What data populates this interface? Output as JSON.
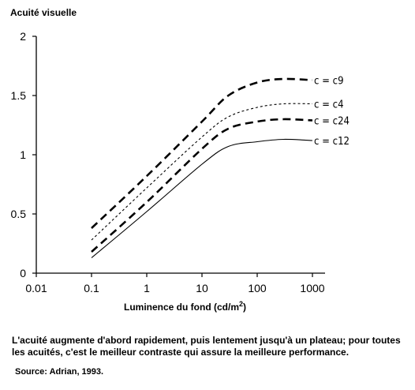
{
  "chart_data": {
    "type": "line",
    "ylabel": "Acuité visuelle",
    "xlabel_main": "Luminence du fond (cd/m",
    "xlabel_sup": "2",
    "xlabel_tail": ")",
    "x_scale": "log",
    "xlim": [
      0.01,
      1000
    ],
    "ylim": [
      0,
      2
    ],
    "x_ticks": [
      0.01,
      0.1,
      1,
      10,
      100,
      1000
    ],
    "x_tick_labels": [
      "0.01",
      "0.1",
      "1",
      "10",
      "100",
      "1000"
    ],
    "y_ticks": [
      0,
      0.5,
      1,
      1.5,
      2
    ],
    "y_tick_labels": [
      "0",
      "0.5",
      "1",
      "1.5",
      "2"
    ],
    "grid": false,
    "legend": "inline labels at right end of lines",
    "series": [
      {
        "name": "c = c9",
        "style": "long-dash",
        "x": [
          0.1,
          1,
          10,
          30,
          100,
          300,
          1000
        ],
        "y": [
          0.38,
          0.82,
          1.28,
          1.5,
          1.61,
          1.64,
          1.63
        ]
      },
      {
        "name": "c = c4",
        "style": "short-dash",
        "x": [
          0.1,
          1,
          10,
          30,
          100,
          300,
          1000
        ],
        "y": [
          0.28,
          0.72,
          1.15,
          1.32,
          1.4,
          1.43,
          1.43
        ]
      },
      {
        "name": "c = c24",
        "style": "long-dash",
        "x": [
          0.1,
          1,
          10,
          30,
          100,
          300,
          1000
        ],
        "y": [
          0.18,
          0.6,
          1.05,
          1.22,
          1.28,
          1.3,
          1.29
        ]
      },
      {
        "name": "c = c12",
        "style": "solid",
        "x": [
          0.1,
          1,
          10,
          30,
          100,
          300,
          1000
        ],
        "y": [
          0.13,
          0.52,
          0.92,
          1.07,
          1.11,
          1.13,
          1.12
        ]
      }
    ]
  },
  "caption": "L'acuité augmente d'abord rapidement, puis lentement jusqu'à un plateau; pour toutes les acuités, c'est le meilleur contraste qui assure la meilleure performance.",
  "source": "Source: Adrian, 1993."
}
